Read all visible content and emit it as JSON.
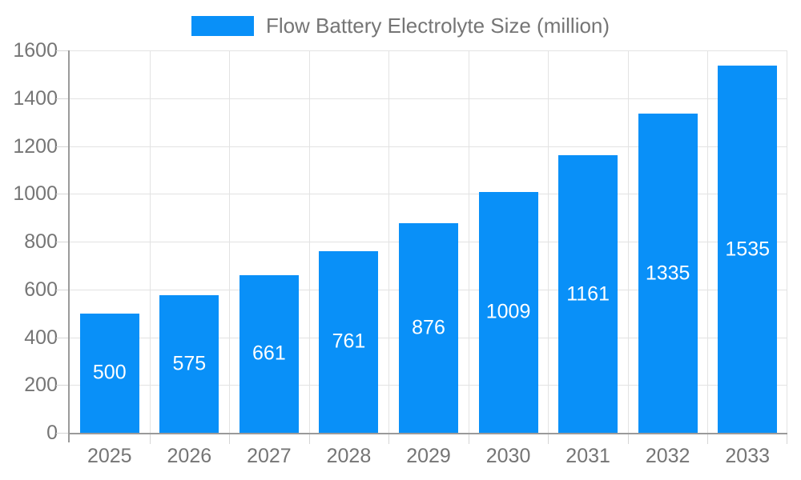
{
  "chart_data": {
    "type": "bar",
    "title": "Flow Battery Electrolyte Size (million)",
    "legend_position": "top",
    "categories": [
      "2025",
      "2026",
      "2027",
      "2028",
      "2029",
      "2030",
      "2031",
      "2032",
      "2033"
    ],
    "values": [
      500,
      575,
      661,
      761,
      876,
      1009,
      1161,
      1335,
      1535
    ],
    "series": [
      {
        "name": "Flow Battery Electrolyte Size (million)",
        "values": [
          500,
          575,
          661,
          761,
          876,
          1009,
          1161,
          1335,
          1535
        ]
      }
    ],
    "xlabel": "",
    "ylabel": "",
    "ylim": [
      0,
      1600
    ],
    "ytick_step": 200,
    "yticks": [
      0,
      200,
      400,
      600,
      800,
      1000,
      1200,
      1400,
      1600
    ],
    "grid": true,
    "value_label_placement": "inside-center"
  },
  "colors": {
    "bar": "#0990f8",
    "grid": "#e3e3e3",
    "axis": "#9a9a9a",
    "tick": "#d6d6d6",
    "text": "#757575",
    "value_label": "#ffffff",
    "background": "#ffffff"
  }
}
